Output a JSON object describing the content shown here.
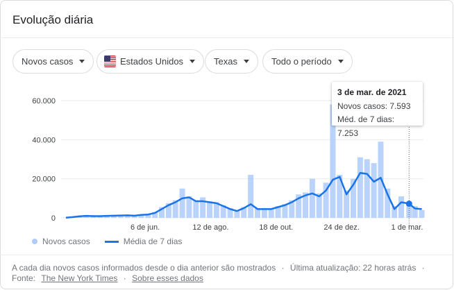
{
  "header": {
    "title": "Evolução diária"
  },
  "filters": [
    {
      "label": "Novos casos"
    },
    {
      "label": "Estados Unidos",
      "icon": "us-flag-icon"
    },
    {
      "label": "Texas"
    },
    {
      "label": "Todo o período"
    }
  ],
  "tooltip": {
    "date": "3 de mar. de 2021",
    "new_cases": "Novos casos: 7.593",
    "avg": "Méd. de 7 dias: 7.253"
  },
  "legend": {
    "bars": "Novos casos",
    "line": "Média de 7 dias"
  },
  "footer": {
    "note": "A cada dia novos casos informados desde o dia anterior são mostrados",
    "sep": "·",
    "updated": "Última atualização: 22 horas atrás",
    "source_label": "Fonte:",
    "source": "The New York Times",
    "about": "Sobre esses dados"
  },
  "colors": {
    "bar": "#aecbfa",
    "line": "#1a73e8",
    "grid": "#ebebeb"
  },
  "chart_data": {
    "type": "bar+line",
    "ylim": [
      0,
      60000
    ],
    "yticks": [
      "0",
      "20.000",
      "40.000",
      "60.000"
    ],
    "ytick_values": [
      0,
      20000,
      40000,
      60000
    ],
    "xlim": [
      "2020-03-17",
      "2021-03-17"
    ],
    "xticks": [
      {
        "label": "6 de jun.",
        "date": "2020-06-06"
      },
      {
        "label": "12 de ago.",
        "date": "2020-08-12"
      },
      {
        "label": "18 de out.",
        "date": "2020-10-18"
      },
      {
        "label": "24 de dez.",
        "date": "2020-12-24"
      },
      {
        "label": "1 de mar.",
        "date": "2021-03-01"
      }
    ],
    "grid": true,
    "legend": "bottom-left",
    "highlight": {
      "date": "2021-03-03",
      "new_cases": 7593,
      "avg": 7253
    },
    "series": [
      {
        "name": "Média de 7 dias",
        "type": "line",
        "points": [
          [
            "2020-03-17",
            100
          ],
          [
            "2020-03-24",
            400
          ],
          [
            "2020-03-31",
            800
          ],
          [
            "2020-04-07",
            1000
          ],
          [
            "2020-04-14",
            900
          ],
          [
            "2020-04-21",
            900
          ],
          [
            "2020-04-28",
            1000
          ],
          [
            "2020-05-05",
            1100
          ],
          [
            "2020-05-12",
            1200
          ],
          [
            "2020-05-19",
            1300
          ],
          [
            "2020-05-26",
            1100
          ],
          [
            "2020-06-02",
            1500
          ],
          [
            "2020-06-09",
            1700
          ],
          [
            "2020-06-16",
            2500
          ],
          [
            "2020-06-23",
            4500
          ],
          [
            "2020-06-30",
            6500
          ],
          [
            "2020-07-07",
            8000
          ],
          [
            "2020-07-14",
            10000
          ],
          [
            "2020-07-21",
            10500
          ],
          [
            "2020-07-28",
            8500
          ],
          [
            "2020-08-04",
            8500
          ],
          [
            "2020-08-11",
            8000
          ],
          [
            "2020-08-18",
            7500
          ],
          [
            "2020-08-25",
            6000
          ],
          [
            "2020-09-01",
            4500
          ],
          [
            "2020-09-08",
            3500
          ],
          [
            "2020-09-15",
            5000
          ],
          [
            "2020-09-22",
            7000
          ],
          [
            "2020-09-29",
            4500
          ],
          [
            "2020-10-06",
            4500
          ],
          [
            "2020-10-13",
            4500
          ],
          [
            "2020-10-20",
            5500
          ],
          [
            "2020-10-27",
            6500
          ],
          [
            "2020-11-03",
            8000
          ],
          [
            "2020-11-10",
            10000
          ],
          [
            "2020-11-17",
            11500
          ],
          [
            "2020-11-24",
            12500
          ],
          [
            "2020-12-01",
            11000
          ],
          [
            "2020-12-08",
            14000
          ],
          [
            "2020-12-15",
            19500
          ],
          [
            "2020-12-22",
            21000
          ],
          [
            "2020-12-29",
            12000
          ],
          [
            "2021-01-05",
            17000
          ],
          [
            "2021-01-12",
            23000
          ],
          [
            "2021-01-19",
            22500
          ],
          [
            "2021-01-26",
            18500
          ],
          [
            "2021-02-02",
            20500
          ],
          [
            "2021-02-09",
            12000
          ],
          [
            "2021-02-16",
            4500
          ],
          [
            "2021-02-23",
            8000
          ],
          [
            "2021-03-03",
            7253
          ],
          [
            "2021-03-09",
            4800
          ],
          [
            "2021-03-16",
            4500
          ]
        ]
      },
      {
        "name": "Novos casos",
        "type": "bar",
        "points": [
          [
            "2020-03-17",
            150
          ],
          [
            "2020-03-24",
            500
          ],
          [
            "2020-03-31",
            900
          ],
          [
            "2020-04-07",
            1100
          ],
          [
            "2020-04-14",
            900
          ],
          [
            "2020-04-21",
            1000
          ],
          [
            "2020-04-28",
            1100
          ],
          [
            "2020-05-05",
            1200
          ],
          [
            "2020-05-12",
            1300
          ],
          [
            "2020-05-19",
            1400
          ],
          [
            "2020-05-26",
            1200
          ],
          [
            "2020-06-02",
            1600
          ],
          [
            "2020-06-09",
            2000
          ],
          [
            "2020-06-16",
            3000
          ],
          [
            "2020-06-23",
            5500
          ],
          [
            "2020-06-30",
            7500
          ],
          [
            "2020-07-07",
            9000
          ],
          [
            "2020-07-14",
            15000
          ],
          [
            "2020-07-21",
            11000
          ],
          [
            "2020-07-28",
            9000
          ],
          [
            "2020-08-04",
            10500
          ],
          [
            "2020-08-11",
            8500
          ],
          [
            "2020-08-18",
            8000
          ],
          [
            "2020-08-25",
            6500
          ],
          [
            "2020-09-01",
            5000
          ],
          [
            "2020-09-08",
            4000
          ],
          [
            "2020-09-15",
            5500
          ],
          [
            "2020-09-22",
            22000
          ],
          [
            "2020-09-29",
            5000
          ],
          [
            "2020-10-06",
            5000
          ],
          [
            "2020-10-13",
            5000
          ],
          [
            "2020-10-20",
            6000
          ],
          [
            "2020-10-27",
            7000
          ],
          [
            "2020-11-03",
            9000
          ],
          [
            "2020-11-10",
            12000
          ],
          [
            "2020-11-17",
            13000
          ],
          [
            "2020-11-24",
            20000
          ],
          [
            "2020-12-01",
            12500
          ],
          [
            "2020-12-08",
            18000
          ],
          [
            "2020-12-15",
            58000
          ],
          [
            "2020-12-22",
            22000
          ],
          [
            "2020-12-29",
            14000
          ],
          [
            "2021-01-05",
            20000
          ],
          [
            "2021-01-12",
            31000
          ],
          [
            "2021-01-19",
            30000
          ],
          [
            "2021-01-26",
            28000
          ],
          [
            "2021-02-02",
            39000
          ],
          [
            "2021-02-09",
            15000
          ],
          [
            "2021-02-16",
            6000
          ],
          [
            "2021-02-23",
            11000
          ],
          [
            "2021-03-03",
            7593
          ],
          [
            "2021-03-09",
            6000
          ],
          [
            "2021-03-16",
            4000
          ]
        ]
      }
    ]
  }
}
